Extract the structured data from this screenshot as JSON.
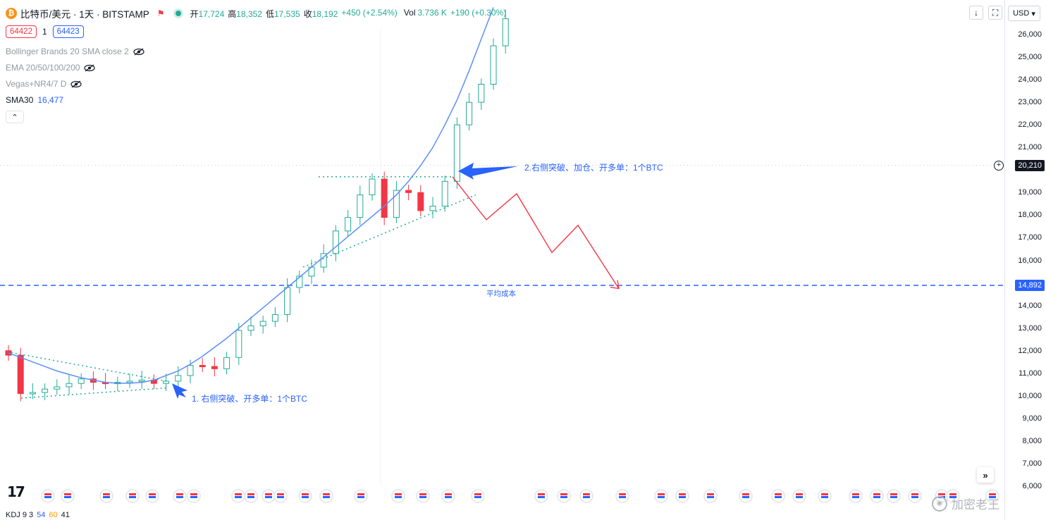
{
  "header": {
    "symbol_title": "比特币/美元 · 1天 · BITSTAMP",
    "coin_glyph": "₿",
    "ohlc": [
      {
        "label": "开",
        "value": "17,724"
      },
      {
        "label": "高",
        "value": "18,352"
      },
      {
        "label": "低",
        "value": "17,535"
      },
      {
        "label": "收",
        "value": "18,192"
      },
      {
        "label": "",
        "value": "+450 (+2.54%)"
      },
      {
        "label": "Vol",
        "value": "3.736 K"
      },
      {
        "label": "",
        "value": "+190 (+0.30%)"
      }
    ]
  },
  "quote": {
    "sell": "64422",
    "spread": "1",
    "buy": "64423"
  },
  "indicators": {
    "bollinger": "Bollinger Brands 20 SMA close 2",
    "ema": "EMA 20/50/100/200",
    "vegas": "Vegas+NR4/7 D",
    "sma_label": "SMA30",
    "sma_value": "16,477",
    "collapse_glyph": "⌃"
  },
  "annotations": {
    "note_1": "1. 右侧突破、开多单：1个BTC",
    "note_2": "2.右侧突破、加仓、开多单：1个BTC",
    "avg_cost": "平均成本"
  },
  "price_axis": {
    "ticks": [
      "26,000",
      "25,000",
      "24,000",
      "23,000",
      "22,000",
      "21,000",
      "19,000",
      "18,000",
      "17,000",
      "16,000",
      "14,000",
      "13,000",
      "12,000",
      "11,000",
      "10,000",
      "9,000",
      "8,000",
      "7,000",
      "6,000"
    ],
    "current_price_tag": "20,210",
    "avg_cost_tag": "14,892",
    "currency": "USD"
  },
  "toolbar": {
    "download_glyph": "↓",
    "fullscreen_glyph": "⛶",
    "dropdown_glyph": "▾",
    "scroll_glyph": "»"
  },
  "footer": {
    "tv_logo": "17",
    "kdj_label": "KDJ 9 3",
    "kdj_k": "54",
    "kdj_d": "60",
    "kdj_j": "41",
    "watermark": "加密老王"
  },
  "colors": {
    "up": "#22ab94",
    "down": "#f23645",
    "sma": "#5b8ff9",
    "accent": "#2962ff",
    "trendline": "#22ab94",
    "projection": "#f23645"
  },
  "chart_data": {
    "type": "candlestick",
    "symbol": "BTC/USD",
    "interval": "1D",
    "ylim": [
      6000,
      27000
    ],
    "series": [
      {
        "name": "SMA30",
        "values": [
          11900,
          11700,
          11500,
          11300,
          11100,
          10950,
          10800,
          10700,
          10600,
          10560,
          10560,
          10600,
          10700,
          10900,
          11100,
          11400,
          11750,
          12150,
          12550,
          13000,
          13450,
          13900,
          14350,
          14800,
          15250,
          15700,
          16150,
          16600,
          17050,
          17500,
          17950,
          18400,
          18900,
          19500,
          20200,
          21000,
          22000,
          23100,
          24400,
          25800,
          27200
        ]
      },
      {
        "name": "close",
        "values": [
          11800,
          10100,
          10150,
          10300,
          10400,
          10550,
          10750,
          10600,
          10550,
          10600,
          10650,
          10700,
          10550,
          10650,
          10900,
          11350,
          11300,
          11200,
          11700,
          12900,
          13100,
          13300,
          13600,
          14800,
          15300,
          15700,
          16300,
          17300,
          17900,
          18900,
          19600,
          17900,
          19100,
          19000,
          18200,
          18400,
          19500,
          22000,
          23000,
          23800,
          25500,
          26700
        ]
      }
    ],
    "markers": [
      {
        "label": "1. 右侧突破、开多单：1个BTC",
        "price": 10600
      },
      {
        "label": "2.右侧突破、加仓、开多单：1个BTC",
        "price": 19900
      }
    ],
    "horizontal_lines": [
      {
        "label": "平均成本",
        "price": 14892
      }
    ],
    "current_price": 20210
  }
}
